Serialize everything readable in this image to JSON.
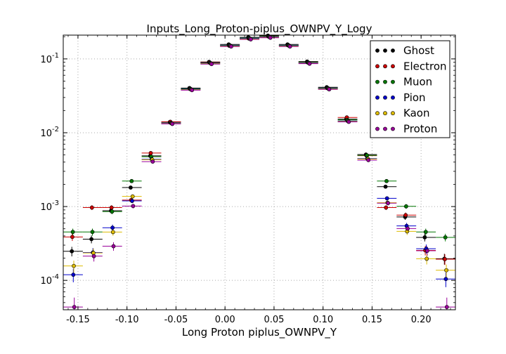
{
  "chart_data": {
    "type": "scatter",
    "title": "Inputs_Long_Proton-piplus_OWNPV_Y_Logy",
    "xlabel": "Long Proton piplus_OWNPV_Y",
    "ylabel": "",
    "xlim": [
      -0.165,
      0.235
    ],
    "ylim": [
      4e-05,
      0.21
    ],
    "yscale": "log",
    "grid": true,
    "legend_position": "top-right",
    "x_ticks": [
      "-0.15",
      "-0.10",
      "-0.05",
      "0.00",
      "0.05",
      "0.10",
      "0.15",
      "0.20"
    ],
    "y_ticks": [
      {
        "base": "10",
        "exp": "-4"
      },
      {
        "base": "10",
        "exp": "-3"
      },
      {
        "base": "10",
        "exp": "-2"
      },
      {
        "base": "10",
        "exp": "-1"
      }
    ],
    "x": [
      -0.155,
      -0.135,
      -0.115,
      -0.095,
      -0.075,
      -0.055,
      -0.035,
      -0.015,
      0.005,
      0.025,
      0.045,
      0.065,
      0.085,
      0.105,
      0.125,
      0.145,
      0.165,
      0.185,
      0.205,
      0.225
    ],
    "series": [
      {
        "name": "Ghost",
        "color": "#000000",
        "values": [
          0.00024,
          0.00035,
          0.00085,
          0.00175,
          0.0047,
          0.0135,
          0.039,
          0.088,
          0.152,
          0.19,
          0.2,
          0.152,
          0.089,
          0.04,
          0.0148,
          0.0049,
          0.0018,
          0.0007,
          0.00037,
          0.00019
        ]
      },
      {
        "name": "Electron",
        "color": "#cc0000",
        "values": [
          0.00038,
          0.00095,
          0.00095,
          0.0012,
          0.0052,
          0.0138,
          0.0385,
          0.088,
          0.148,
          0.185,
          0.198,
          0.15,
          0.088,
          0.0395,
          0.0158,
          0.0048,
          0.00095,
          0.00075,
          0.00025,
          0.00019
        ]
      },
      {
        "name": "Muon",
        "color": "#007700",
        "values": [
          0.00045,
          0.00045,
          0.00085,
          0.0022,
          0.0047,
          0.0135,
          0.039,
          0.088,
          0.152,
          0.19,
          0.2,
          0.152,
          0.089,
          0.04,
          0.0148,
          0.0049,
          0.0022,
          0.001,
          0.00045,
          0.00038
        ]
      },
      {
        "name": "Pion",
        "color": "#0000cc",
        "values": [
          0.00012,
          0.00024,
          0.00052,
          0.0012,
          0.0044,
          0.0136,
          0.039,
          0.088,
          0.152,
          0.19,
          0.2,
          0.152,
          0.089,
          0.04,
          0.0145,
          0.0045,
          0.0013,
          0.00055,
          0.00027,
          0.000105
        ]
      },
      {
        "name": "Kaon",
        "color": "#ddbb00",
        "values": [
          0.00016,
          0.00024,
          0.00046,
          0.0014,
          0.0044,
          0.0136,
          0.039,
          0.088,
          0.152,
          0.19,
          0.2,
          0.152,
          0.089,
          0.04,
          0.0145,
          0.0045,
          0.00115,
          0.00047,
          0.0002,
          0.00014
        ]
      },
      {
        "name": "Proton",
        "color": "#990099",
        "values": [
          4.5e-05,
          0.00022,
          0.0003,
          0.00105,
          0.0042,
          0.0136,
          0.039,
          0.088,
          0.152,
          0.19,
          0.2,
          0.152,
          0.089,
          0.04,
          0.0145,
          0.0044,
          0.00115,
          0.00052,
          0.00026,
          4.5e-05
        ]
      }
    ]
  }
}
